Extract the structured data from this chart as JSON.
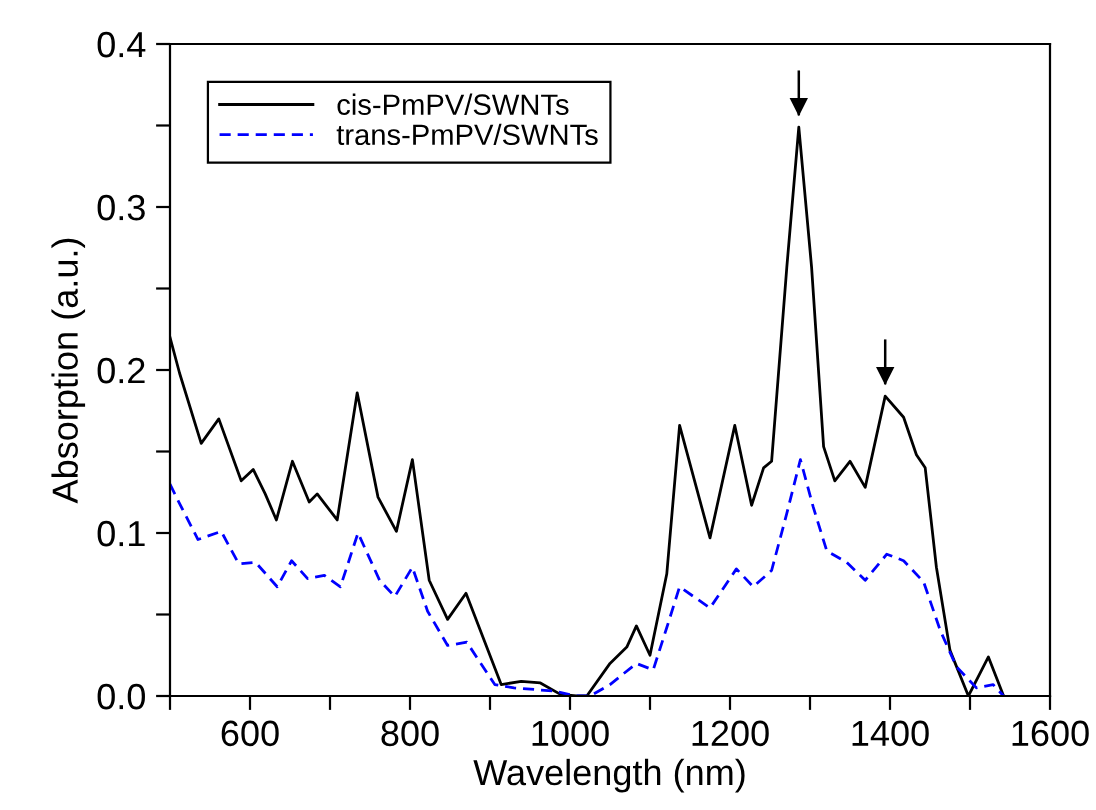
{
  "chart_data": {
    "type": "line",
    "xlabel": "Wavelength (nm)",
    "ylabel": "Absorption (a.u.)",
    "xlim": [
      500,
      1600
    ],
    "ylim": [
      0.0,
      0.4
    ],
    "xticks": [
      {
        "value": 500,
        "label": null
      },
      600,
      {
        "value": 700,
        "label": null
      },
      800,
      {
        "value": 900,
        "label": null
      },
      1000,
      {
        "value": 1100,
        "label": null
      },
      1200,
      {
        "value": 1300,
        "label": null
      },
      1400,
      {
        "value": 1500,
        "label": null
      },
      1600
    ],
    "yticks": [
      "0.0",
      {
        "value": 0.05,
        "label": null
      },
      0.1,
      {
        "value": 0.15,
        "label": null
      },
      0.2,
      {
        "value": 0.25,
        "label": null
      },
      0.3,
      {
        "value": 0.35,
        "label": null
      },
      0.4
    ],
    "grid": false,
    "legend": "top left",
    "marker": "none",
    "series": [
      {
        "name": "cis-PmPV/SWNTs",
        "color": "#000000",
        "line_style": "solid",
        "x": [
          500,
          512,
          539,
          561,
          589,
          604,
          619,
          633,
          653,
          674,
          684,
          709,
          734,
          760,
          783,
          803,
          824,
          847,
          870,
          914,
          939,
          963,
          988,
          1008,
          1021,
          1050,
          1071,
          1083,
          1100,
          1121,
          1137,
          1175,
          1206,
          1227,
          1242,
          1252,
          1271,
          1286,
          1302,
          1317,
          1331,
          1350,
          1369,
          1394,
          1417,
          1433,
          1444,
          1458,
          1475,
          1498,
          1523,
          1542
        ],
        "values": [
          0.22,
          0.198,
          0.155,
          0.17,
          0.132,
          0.139,
          0.124,
          0.108,
          0.144,
          0.119,
          0.124,
          0.108,
          0.186,
          0.122,
          0.101,
          0.145,
          0.071,
          0.047,
          0.063,
          0.007,
          0.009,
          0.008,
          0.001,
          0.0,
          0.0,
          0.02,
          0.03,
          0.043,
          0.025,
          0.075,
          0.166,
          0.097,
          0.166,
          0.117,
          0.14,
          0.144,
          0.263,
          0.349,
          0.263,
          0.153,
          0.132,
          0.144,
          0.128,
          0.184,
          0.171,
          0.148,
          0.14,
          0.079,
          0.028,
          0.0,
          0.024,
          0.0
        ]
      },
      {
        "name": "trans-PmPV/SWNTs",
        "color": "#0000ff",
        "line_style": "dashed",
        "x": [
          500,
          512,
          535,
          564,
          586,
          607,
          634,
          652,
          672,
          693,
          713,
          735,
          762,
          781,
          803,
          822,
          847,
          871,
          906,
          930,
          980,
          1008,
          1025,
          1050,
          1083,
          1104,
          1121,
          1137,
          1175,
          1208,
          1229,
          1252,
          1271,
          1288,
          1304,
          1321,
          1346,
          1369,
          1396,
          1417,
          1442,
          1463,
          1483,
          1508,
          1529,
          1542
        ],
        "values": [
          0.13,
          0.118,
          0.096,
          0.101,
          0.081,
          0.082,
          0.067,
          0.083,
          0.072,
          0.074,
          0.067,
          0.1,
          0.071,
          0.061,
          0.079,
          0.052,
          0.031,
          0.033,
          0.007,
          0.005,
          0.003,
          0.0,
          0.0,
          0.007,
          0.02,
          0.016,
          0.042,
          0.067,
          0.054,
          0.078,
          0.067,
          0.077,
          0.112,
          0.145,
          0.116,
          0.089,
          0.082,
          0.071,
          0.087,
          0.083,
          0.07,
          0.04,
          0.018,
          0.005,
          0.007,
          0.0
        ]
      }
    ]
  }
}
